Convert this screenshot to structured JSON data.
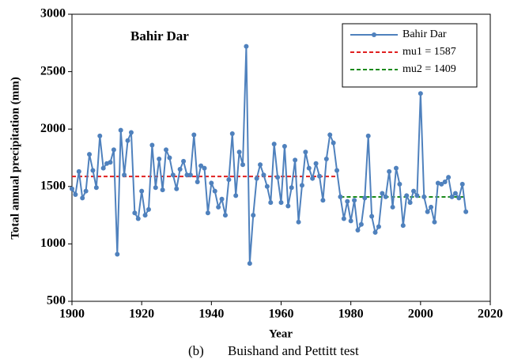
{
  "chart_data": {
    "type": "line",
    "annotation": "Bahir Dar",
    "xlabel": "Year",
    "ylabel": "Total annual precipitation (mm)",
    "caption_label": "(b)",
    "caption": "Buishand and Pettitt test",
    "xlim": [
      1900,
      2020
    ],
    "xticks": [
      1900,
      1920,
      1940,
      1960,
      1980,
      2000,
      2020
    ],
    "ylim": [
      500,
      3000
    ],
    "yticks": [
      500,
      1000,
      1500,
      2000,
      2500,
      3000
    ],
    "legend": "upper right",
    "x": [
      1900,
      1901,
      1902,
      1903,
      1904,
      1905,
      1906,
      1907,
      1908,
      1909,
      1910,
      1911,
      1912,
      1913,
      1914,
      1915,
      1916,
      1917,
      1918,
      1919,
      1920,
      1921,
      1922,
      1923,
      1924,
      1925,
      1926,
      1927,
      1928,
      1929,
      1930,
      1931,
      1932,
      1933,
      1934,
      1935,
      1936,
      1937,
      1938,
      1939,
      1940,
      1941,
      1942,
      1943,
      1944,
      1945,
      1946,
      1947,
      1948,
      1949,
      1950,
      1951,
      1952,
      1953,
      1954,
      1955,
      1956,
      1957,
      1958,
      1959,
      1960,
      1961,
      1962,
      1963,
      1964,
      1965,
      1966,
      1967,
      1968,
      1969,
      1970,
      1971,
      1972,
      1973,
      1974,
      1975,
      1976,
      1977,
      1978,
      1979,
      1980,
      1981,
      1982,
      1983,
      1984,
      1985,
      1986,
      1987,
      1988,
      1989,
      1990,
      1991,
      1992,
      1993,
      1994,
      1995,
      1996,
      1997,
      1998,
      1999,
      2000,
      2001,
      2002,
      2003,
      2004,
      2005,
      2006,
      2007,
      2008,
      2009,
      2010,
      2011,
      2012,
      2013
    ],
    "series": [
      {
        "name": "Bahir Dar",
        "color": "#4f81bd",
        "values": [
          1480,
          1430,
          1630,
          1400,
          1460,
          1780,
          1640,
          1490,
          1940,
          1660,
          1700,
          1710,
          1820,
          910,
          1990,
          1600,
          1900,
          1970,
          1270,
          1220,
          1460,
          1250,
          1300,
          1860,
          1490,
          1740,
          1470,
          1820,
          1750,
          1600,
          1480,
          1650,
          1720,
          1600,
          1600,
          1950,
          1540,
          1680,
          1660,
          1270,
          1530,
          1460,
          1320,
          1390,
          1250,
          1560,
          1960,
          1420,
          1800,
          1690,
          2720,
          830,
          1250,
          1570,
          1690,
          1600,
          1500,
          1360,
          1870,
          1580,
          1360,
          1850,
          1330,
          1490,
          1730,
          1190,
          1510,
          1800,
          1660,
          1570,
          1700,
          1590,
          1380,
          1740,
          1950,
          1880,
          1640,
          1410,
          1220,
          1370,
          1200,
          1380,
          1120,
          1170,
          1400,
          1940,
          1240,
          1100,
          1150,
          1440,
          1410,
          1630,
          1320,
          1660,
          1520,
          1160,
          1420,
          1360,
          1460,
          1420,
          2310,
          1410,
          1280,
          1320,
          1190,
          1530,
          1520,
          1540,
          1580,
          1410,
          1440,
          1400,
          1520,
          1280
        ]
      }
    ],
    "reference_lines": [
      {
        "name": "mu1 = 1587",
        "color": "#e02020",
        "value": 1587,
        "x": [
          1900,
          1976
        ]
      },
      {
        "name": "mu2 = 1409",
        "color": "#1a8a1a",
        "value": 1409,
        "x": [
          1977,
          2013
        ]
      }
    ]
  }
}
